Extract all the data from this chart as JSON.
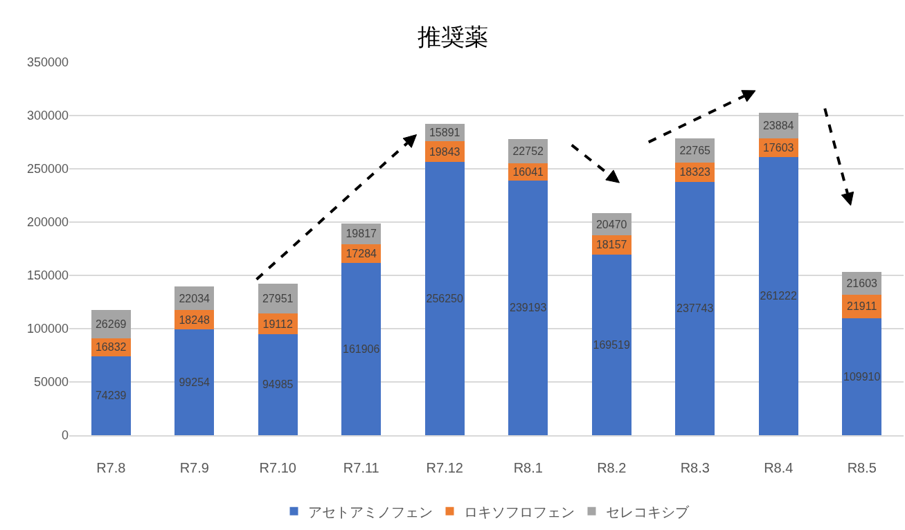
{
  "chart_data": {
    "type": "bar",
    "title": "推奨薬",
    "categories": [
      "R7.8",
      "R7.9",
      "R7.10",
      "R7.11",
      "R7.12",
      "R8.1",
      "R8.2",
      "R8.3",
      "R8.4",
      "R8.5"
    ],
    "stacked": true,
    "series": [
      {
        "name": "アセトアミノフェン",
        "color": "#4472c4",
        "values": [
          74239,
          99254,
          94985,
          161906,
          256250,
          239193,
          169519,
          237743,
          261222,
          109910
        ]
      },
      {
        "name": "ロキソフロフェン",
        "color": "#ed7d31",
        "values": [
          16832,
          18248,
          19112,
          17284,
          19843,
          16041,
          18157,
          18323,
          17603,
          21911
        ]
      },
      {
        "name": "セレコキシブ",
        "color": "#a5a5a5",
        "values": [
          26269,
          22034,
          27951,
          19817,
          15891,
          22752,
          20470,
          22765,
          23884,
          21603
        ]
      }
    ],
    "ylim": [
      0,
      350000
    ],
    "yticks": [
      0,
      50000,
      100000,
      150000,
      200000,
      250000,
      300000,
      350000
    ],
    "grid": "y",
    "legend": "bottom",
    "data_labels": true
  }
}
